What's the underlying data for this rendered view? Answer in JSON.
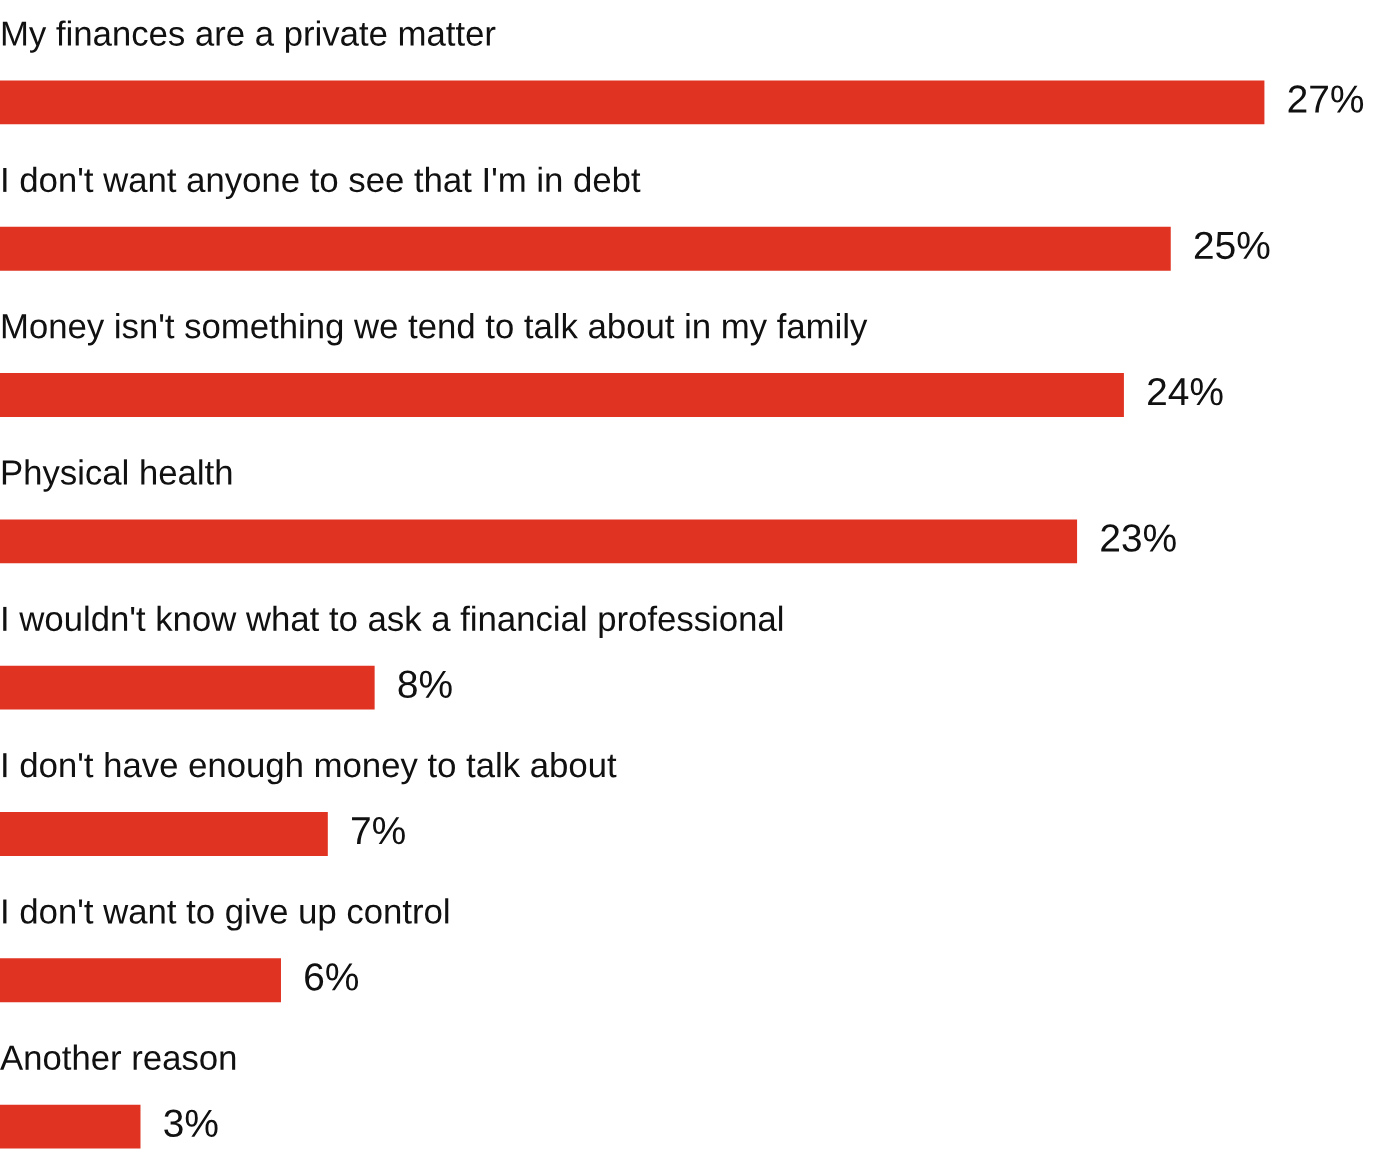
{
  "chart_data": {
    "type": "bar",
    "orientation": "horizontal",
    "categories": [
      "My finances are a private matter",
      "I don't want anyone to see that I'm in debt",
      "Money isn't something we tend to talk about in my family",
      "Physical health",
      "I wouldn't know what to ask a financial professional",
      "I don't have enough money to talk about",
      "I don't want to give up control",
      "Another reason"
    ],
    "values": [
      27,
      25,
      24,
      23,
      8,
      7,
      6,
      3
    ],
    "value_labels": [
      "27%",
      "25%",
      "24%",
      "23%",
      "8%",
      "7%",
      "6%",
      "3%"
    ],
    "color": "#e03322"
  }
}
